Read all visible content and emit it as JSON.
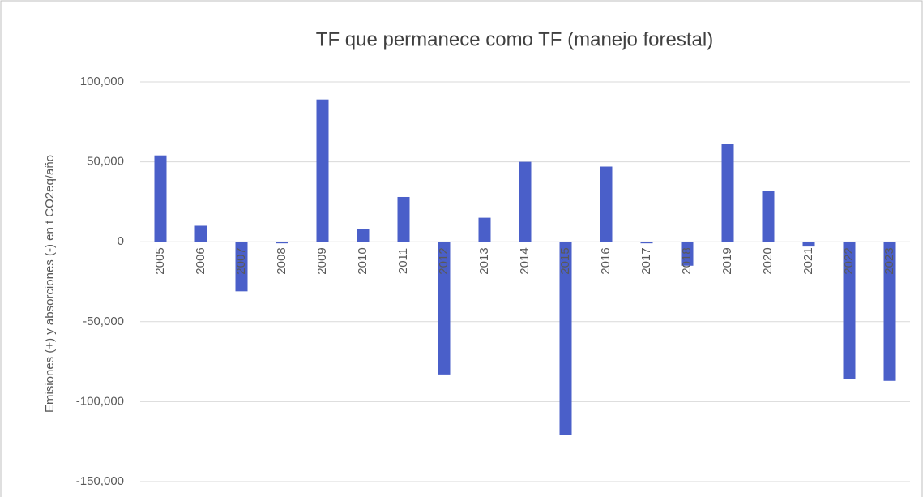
{
  "chart_data": {
    "type": "bar",
    "title": "TF que permanece como TF (manejo forestal)",
    "y_axis_label": "Emisiones (+) y absorciones (-) en t CO2eq/año",
    "categories": [
      "2005",
      "2006",
      "2007",
      "2008",
      "2009",
      "2010",
      "2011",
      "2012",
      "2013",
      "2014",
      "2015",
      "2016",
      "2017",
      "2018",
      "2019",
      "2020",
      "2021",
      "2022",
      "2023"
    ],
    "values": [
      54000,
      10000,
      -31000,
      -1000,
      89000,
      8000,
      28000,
      -83000,
      15000,
      50000,
      -121000,
      47000,
      -1000,
      -15000,
      61000,
      32000,
      -3000,
      -86000,
      -87000
    ],
    "color": "#4a5fc9",
    "ylim": [
      -150000,
      100000
    ],
    "yticks": [
      {
        "value": -150000,
        "label": "-150,000"
      },
      {
        "value": -100000,
        "label": "-100,000"
      },
      {
        "value": -50000,
        "label": "-50,000"
      },
      0,
      {
        "value": 50000,
        "label": "50,000"
      },
      {
        "value": 100000,
        "label": "100,000"
      }
    ],
    "grid": true
  }
}
